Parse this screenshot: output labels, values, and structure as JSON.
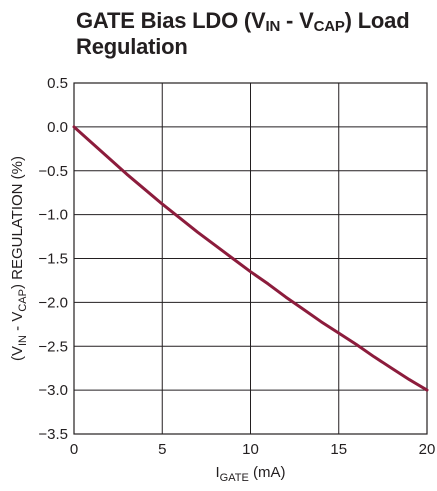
{
  "title": {
    "part1": "GATE Bias LDO (V",
    "sub1": "IN",
    "part2": " - V",
    "sub2": "CAP",
    "part3": ") Load",
    "line2": "Regulation"
  },
  "chart_data": {
    "type": "line",
    "xlabel": {
      "main": "I",
      "sub": "GATE",
      "suffix": " (mA)"
    },
    "ylabel": {
      "prefix": "(V",
      "sub1": "IN",
      "mid": " - V",
      "sub2": "CAP",
      "suffix": ") REGULATION (%)"
    },
    "xlim": [
      0,
      20
    ],
    "ylim": [
      -3.5,
      0.5
    ],
    "xticks": [
      0,
      5,
      10,
      15,
      20
    ],
    "xtick_labels": [
      "0",
      "5",
      "10",
      "15",
      "20"
    ],
    "yticks": [
      0.5,
      0.0,
      -0.5,
      -1.0,
      -1.5,
      -2.0,
      -2.5,
      -3.0,
      -3.5
    ],
    "ytick_labels": [
      "0.5",
      "0.0",
      "−0.5",
      "−1.0",
      "−1.5",
      "−2.0",
      "−2.5",
      "−3.0",
      "−3.5"
    ],
    "grid": true,
    "series": [
      {
        "color": "#8c1c3c",
        "x": [
          0,
          1,
          2,
          3,
          4,
          5,
          6,
          7,
          8,
          9,
          10,
          11,
          12,
          13,
          14,
          15,
          16,
          17,
          18,
          19,
          20
        ],
        "y": [
          0.0,
          -0.18,
          -0.36,
          -0.54,
          -0.71,
          -0.88,
          -1.04,
          -1.2,
          -1.35,
          -1.5,
          -1.65,
          -1.79,
          -1.94,
          -2.08,
          -2.22,
          -2.35,
          -2.48,
          -2.62,
          -2.75,
          -2.88,
          -3.0
        ]
      }
    ]
  }
}
